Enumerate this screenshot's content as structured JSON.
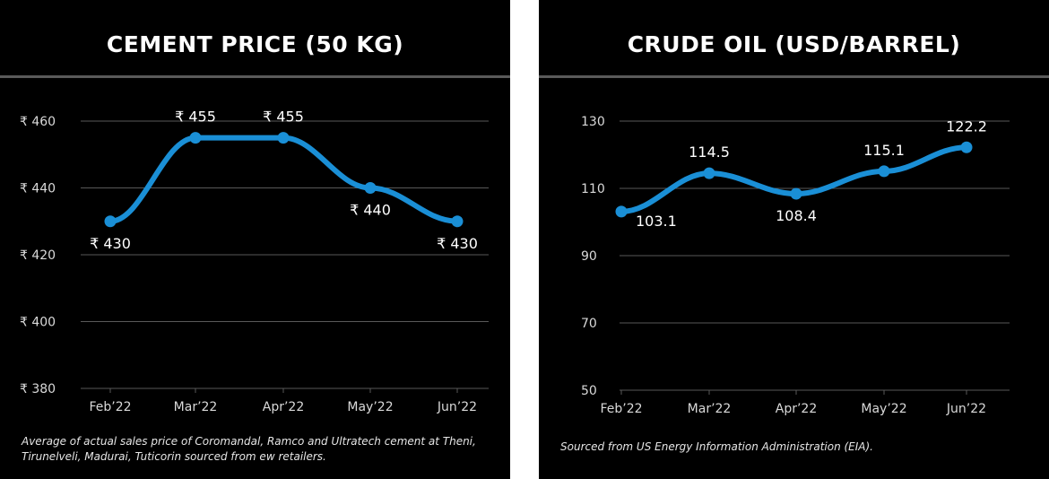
{
  "chart_data": [
    {
      "type": "line",
      "title": "CEMENT PRICE (50 KG)",
      "categories": [
        "Feb’22",
        "Mar’22",
        "Apr’22",
        "May’22",
        "Jun’22"
      ],
      "series": [
        {
          "values": [
            430,
            455,
            455,
            440,
            430
          ],
          "labels": [
            "₹ 430",
            "₹ 455",
            "₹ 455",
            "₹ 440",
            "₹ 430"
          ],
          "color": "#1a8fd6"
        }
      ],
      "ylim": [
        380,
        460
      ],
      "yticks": [
        460,
        440,
        420,
        400,
        380
      ],
      "ytick_labels": [
        "₹ 460",
        "₹ 440",
        "₹ 420",
        "₹ 400",
        "₹ 380"
      ],
      "grid": true,
      "line_smooth": true,
      "note": "Average of actual sales price of Coromandal, Ramco and Ultratech cement at Theni, Tirunelveli, Madurai, Tuticorin sourced from ew retailers."
    },
    {
      "type": "line",
      "title": "CRUDE OIL (USD/BARREL)",
      "categories": [
        "Feb’22",
        "Mar’22",
        "Apr’22",
        "May’22",
        "Jun’22"
      ],
      "series": [
        {
          "values": [
            103.1,
            114.5,
            108.4,
            115.1,
            122.2
          ],
          "labels": [
            "103.1",
            "114.5",
            "108.4",
            "115.1",
            "122.2"
          ],
          "color": "#1a8fd6"
        }
      ],
      "ylim": [
        50,
        130
      ],
      "yticks": [
        130,
        110,
        90,
        70,
        50
      ],
      "ytick_labels": [
        "130",
        "110",
        "90",
        "70",
        "50"
      ],
      "grid": true,
      "line_smooth": true,
      "note": "Sourced from US Energy Information Administration (EIA)."
    }
  ],
  "colors": {
    "background": "#000000",
    "line": "#1a8fd6",
    "grid": "#595959",
    "text": "#ffffff"
  }
}
